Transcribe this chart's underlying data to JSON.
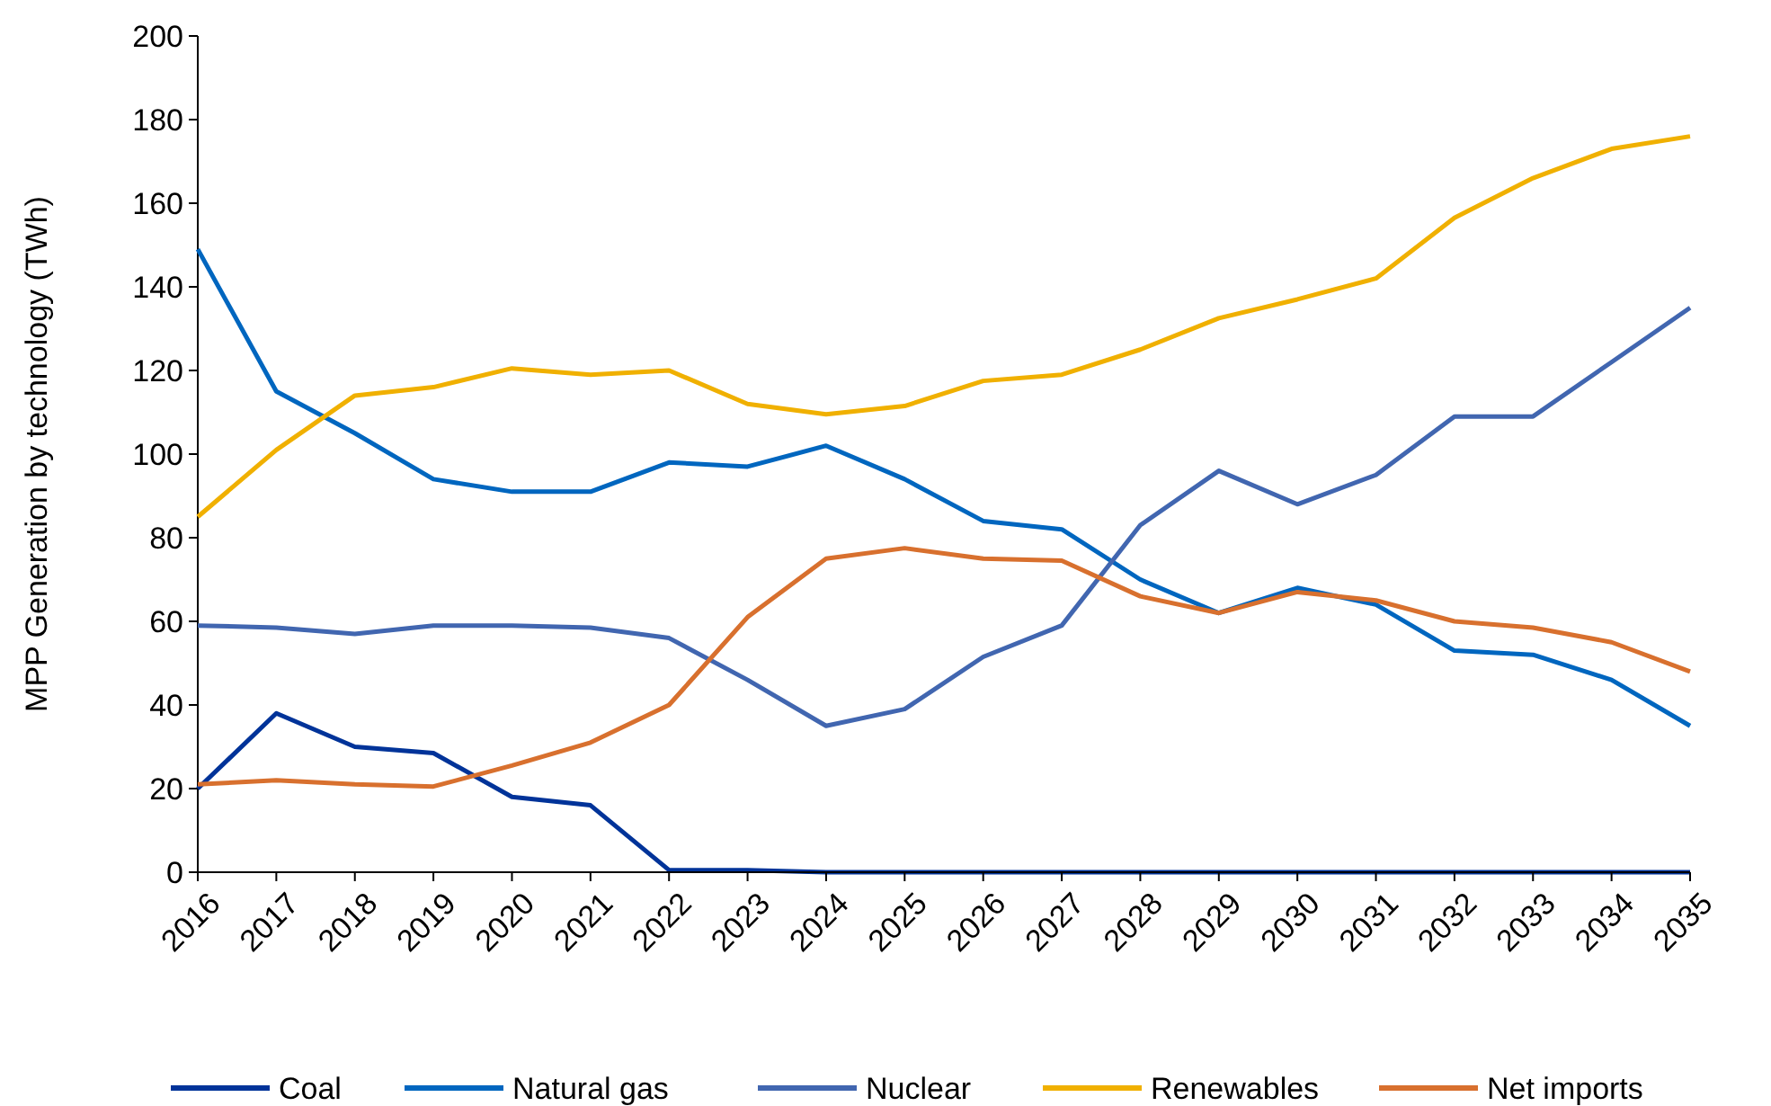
{
  "chart_data": {
    "type": "line",
    "ylabel": "MPP Generation by technology (TWh)",
    "categories": [
      "2016",
      "2017",
      "2018",
      "2019",
      "2020",
      "2021",
      "2022",
      "2023",
      "2024",
      "2025",
      "2026",
      "2027",
      "2028",
      "2029",
      "2030",
      "2031",
      "2032",
      "2033",
      "2034",
      "2035"
    ],
    "series": [
      {
        "name": "Coal",
        "color": "#003399",
        "values": [
          20,
          38,
          30,
          28.5,
          18,
          16,
          0.5,
          0.5,
          0,
          0,
          0,
          0,
          0,
          0,
          0,
          0,
          0,
          0,
          0,
          0
        ]
      },
      {
        "name": "Natural gas",
        "color": "#0066bf",
        "values": [
          149,
          115,
          105,
          94,
          91,
          91,
          98,
          97,
          102,
          94,
          84,
          82,
          70,
          62,
          68,
          64,
          53,
          52,
          46,
          35
        ]
      },
      {
        "name": "Nuclear",
        "color": "#4166b0",
        "values": [
          59,
          58.5,
          57,
          59,
          59,
          58.5,
          56,
          46,
          35,
          39,
          51.5,
          59,
          83,
          96,
          88,
          95,
          109,
          109,
          122,
          135
        ]
      },
      {
        "name": "Renewables",
        "color": "#f0b000",
        "values": [
          85,
          101,
          114,
          116,
          120.5,
          119,
          120,
          112,
          109.5,
          111.5,
          117.5,
          119,
          125,
          132.5,
          137,
          142,
          156.5,
          166,
          173,
          176
        ]
      },
      {
        "name": "Net imports",
        "color": "#d8702e",
        "values": [
          21,
          22,
          21,
          20.5,
          25.5,
          31,
          40,
          61,
          75,
          77.5,
          75,
          74.5,
          66,
          62,
          67,
          65,
          60,
          58.5,
          55,
          48
        ]
      }
    ],
    "ylim": [
      0,
      200
    ],
    "yticks": [
      0,
      20,
      40,
      60,
      80,
      100,
      120,
      140,
      160,
      180,
      200
    ],
    "grid": false,
    "legend": "bottom",
    "marker": "none",
    "line_style": "solid"
  }
}
